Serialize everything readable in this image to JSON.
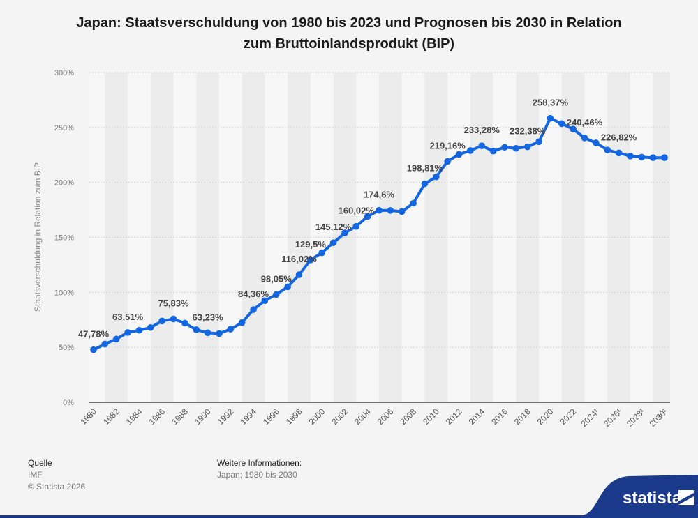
{
  "chart_data": {
    "type": "line",
    "title_line1": "Japan: Staatsverschuldung von 1980 bis 2023 und Prognosen bis 2030 in Relation",
    "title_line2": "zum Bruttoinlandsprodukt (BIP)",
    "ylabel": "Staatsverschuldung in Relation zum BIP",
    "xlabel": "",
    "ylim": [
      0,
      300
    ],
    "y_ticks": [
      0,
      50,
      100,
      150,
      200,
      250,
      300
    ],
    "y_tick_labels": [
      "0%",
      "50%",
      "100%",
      "150%",
      "200%",
      "250%",
      "300%"
    ],
    "grid": true,
    "x_years": [
      1980,
      1981,
      1982,
      1983,
      1984,
      1985,
      1986,
      1987,
      1988,
      1989,
      1990,
      1991,
      1992,
      1993,
      1994,
      1995,
      1996,
      1997,
      1998,
      1999,
      2000,
      2001,
      2002,
      2003,
      2004,
      2005,
      2006,
      2007,
      2008,
      2009,
      2010,
      2011,
      2012,
      2013,
      2014,
      2015,
      2016,
      2017,
      2018,
      2019,
      2020,
      2021,
      2022,
      2023,
      2024,
      2025,
      2026,
      2027,
      2028,
      2029,
      2030
    ],
    "x_tick_labels": [
      "1980",
      "1982",
      "1984",
      "1986",
      "1988",
      "1990",
      "1992",
      "1994",
      "1996",
      "1998",
      "2000",
      "2002",
      "2004",
      "2006",
      "2008",
      "2010",
      "2012",
      "2014",
      "2016",
      "2018",
      "2020",
      "2022",
      "2024¹",
      "2026¹",
      "2028¹",
      "2030¹"
    ],
    "series": [
      {
        "name": "Staatsverschuldung in Relation zum BIP",
        "color": "#1466e0",
        "values": [
          47.78,
          53,
          57.5,
          63.51,
          65.5,
          68,
          74,
          75.83,
          72,
          66,
          63.23,
          62.5,
          66.5,
          72.5,
          84.36,
          92.5,
          98.05,
          105,
          116.02,
          129.5,
          136,
          145.12,
          154,
          160.02,
          169,
          174.6,
          174.5,
          173.5,
          181,
          198.81,
          205,
          219.16,
          225.5,
          229,
          233.28,
          228.5,
          232,
          231,
          232.38,
          237,
          258.37,
          253.5,
          248.5,
          240.46,
          236,
          229.5,
          226.82,
          224,
          223,
          222.5,
          222.5
        ]
      }
    ],
    "data_labels": [
      {
        "year": 1980,
        "text": "47,78%"
      },
      {
        "year": 1983,
        "text": "63,51%"
      },
      {
        "year": 1987,
        "text": "75,83%"
      },
      {
        "year": 1990,
        "text": "63,23%"
      },
      {
        "year": 1994,
        "text": "84,36%"
      },
      {
        "year": 1996,
        "text": "98,05%"
      },
      {
        "year": 1998,
        "text": "116,02%"
      },
      {
        "year": 1999,
        "text": "129,5%"
      },
      {
        "year": 2001,
        "text": "145,12%"
      },
      {
        "year": 2003,
        "text": "160,02%"
      },
      {
        "year": 2005,
        "text": "174,6%"
      },
      {
        "year": 2009,
        "text": "198,81%"
      },
      {
        "year": 2011,
        "text": "219,16%"
      },
      {
        "year": 2014,
        "text": "233,28%"
      },
      {
        "year": 2018,
        "text": "232,38%"
      },
      {
        "year": 2020,
        "text": "258,37%"
      },
      {
        "year": 2023,
        "text": "240,46%"
      },
      {
        "year": 2026,
        "text": "226,82%"
      }
    ]
  },
  "footer": {
    "source_heading": "Quelle",
    "source_name": "IMF",
    "copyright": "© Statista 2026",
    "info_heading": "Weitere Informationen:",
    "info_text": "Japan; 1980 bis 2030"
  },
  "brand": {
    "logo_text": "statista",
    "band_color": "#1b3a8c"
  }
}
